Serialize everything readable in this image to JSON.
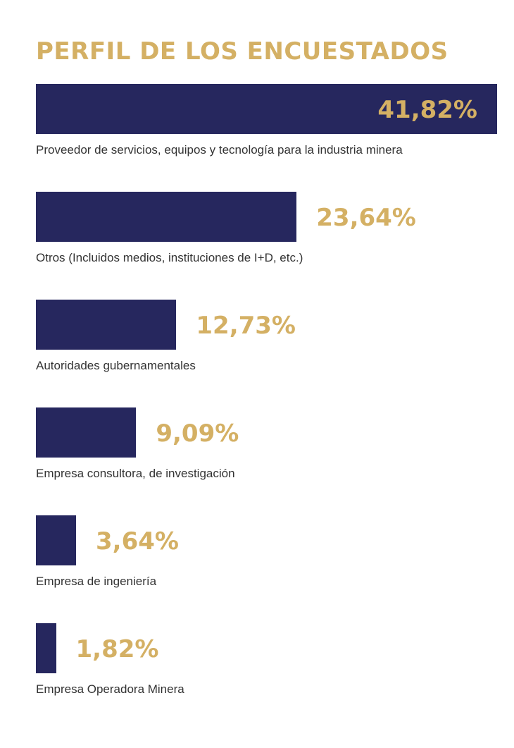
{
  "chart_data": {
    "type": "bar",
    "orientation": "horizontal",
    "title": "PERFIL DE LOS ENCUESTADOS",
    "categories": [
      "Proveedor de servicios, equipos y tecnología para la industria minera",
      "Otros (Incluidos medios, instituciones de I+D, etc.)",
      "Autoridades gubernamentales",
      "Empresa consultora, de investigación",
      "Empresa de ingeniería",
      "Empresa Operadora Minera"
    ],
    "values": [
      41.82,
      23.64,
      12.73,
      9.09,
      3.64,
      1.82
    ],
    "value_labels": [
      "41,82%",
      "23,64%",
      "12,73%",
      "9,09%",
      "3,64%",
      "1,82%"
    ],
    "xlim": [
      0,
      41.82
    ],
    "grid": false,
    "legend": "none"
  },
  "colors": {
    "bar": "#26275e",
    "accent": "#d4b064",
    "label_inside": "#d4b064",
    "text": "#333333"
  }
}
